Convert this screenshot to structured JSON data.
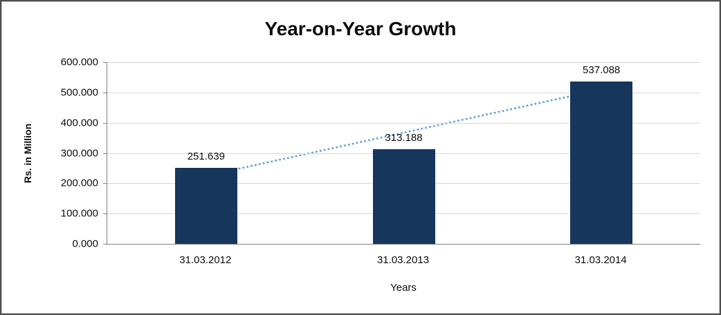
{
  "chart_data": {
    "type": "bar",
    "title": "Year-on-Year Growth",
    "categories": [
      "31.03.2012",
      "31.03.2013",
      "31.03.2014"
    ],
    "values": [
      251.639,
      313.188,
      537.088
    ],
    "data_labels": [
      "251.639",
      "313.188",
      "537.088"
    ],
    "xlabel": "Years",
    "ylabel": "Rs. in Million",
    "ylim": [
      0,
      600
    ],
    "ytick_step": 100,
    "ytick_labels": [
      "0.000",
      "100.000",
      "200.000",
      "300.000",
      "400.000",
      "500.000",
      "600.000"
    ],
    "grid": true,
    "legend": "none",
    "bar_color": "#16365C",
    "trendline": {
      "type": "linear",
      "style": "dotted",
      "color": "#5B9BD5"
    }
  }
}
